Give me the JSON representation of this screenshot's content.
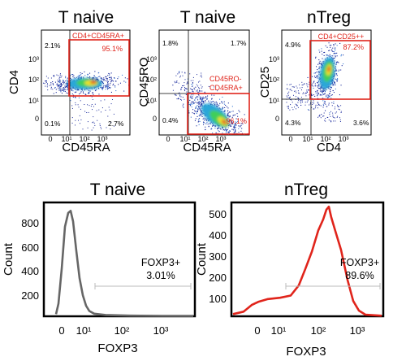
{
  "colors": {
    "gate": "#e0241b",
    "treg_line": "#e0241b",
    "naive_line": "#666666",
    "frame": "#000000"
  },
  "chart_data": [
    {
      "type": "scatter",
      "title": "T naive",
      "xlabel": "CD45RA",
      "ylabel": "CD4",
      "scale": "log",
      "tick_labels": [
        "0",
        "10¹",
        "10²",
        "10³"
      ],
      "gate": {
        "label": "CD4+CD45RA+",
        "percent": "95.1%"
      },
      "quadrants": {
        "upper_left": "2.1%",
        "lower_left": "0.1%",
        "lower_right": "2.7%"
      }
    },
    {
      "type": "scatter",
      "title": "T naive",
      "xlabel": "CD45RA",
      "ylabel": "CD45RO",
      "scale": "log",
      "tick_labels": [
        "0",
        "10¹",
        "10²",
        "10³"
      ],
      "gate": {
        "label_line1": "CD45RO-",
        "label_line2": "CD45RA+",
        "percent": "96.1%"
      },
      "quadrants": {
        "upper_left": "1.8%",
        "upper_right": "1.7%",
        "lower_left": "0.4%"
      }
    },
    {
      "type": "scatter",
      "title": "nTreg",
      "xlabel": "CD4",
      "ylabel": "CD25",
      "scale": "log",
      "tick_labels": [
        "0",
        "10¹",
        "10²",
        "10³"
      ],
      "gate": {
        "label": "CD4+CD25++",
        "percent": "87.2%"
      },
      "quadrants": {
        "upper_left": "4.9%",
        "lower_left": "4.3%",
        "lower_right": "3.6%"
      }
    },
    {
      "type": "line",
      "title": "T naive",
      "xlabel": "FOXP3",
      "ylabel": "Count",
      "x_tick_labels": [
        "0",
        "10¹",
        "10²",
        "10³"
      ],
      "y_ticks": [
        "200",
        "400",
        "600",
        "800"
      ],
      "ylim": [
        0,
        950
      ],
      "marker": {
        "label": "FOXP3+",
        "percent": "3.01%"
      },
      "peak_count": 880
    },
    {
      "type": "line",
      "title": "nTreg",
      "xlabel": "FOXP3",
      "ylabel": "Count",
      "x_tick_labels": [
        "0",
        "10¹",
        "10²",
        "10³"
      ],
      "y_ticks": [
        "100",
        "200",
        "300",
        "400",
        "500"
      ],
      "ylim": [
        0,
        530
      ],
      "marker": {
        "label": "FOXP3+",
        "percent": "89.6%"
      },
      "peak_count": 505
    }
  ]
}
